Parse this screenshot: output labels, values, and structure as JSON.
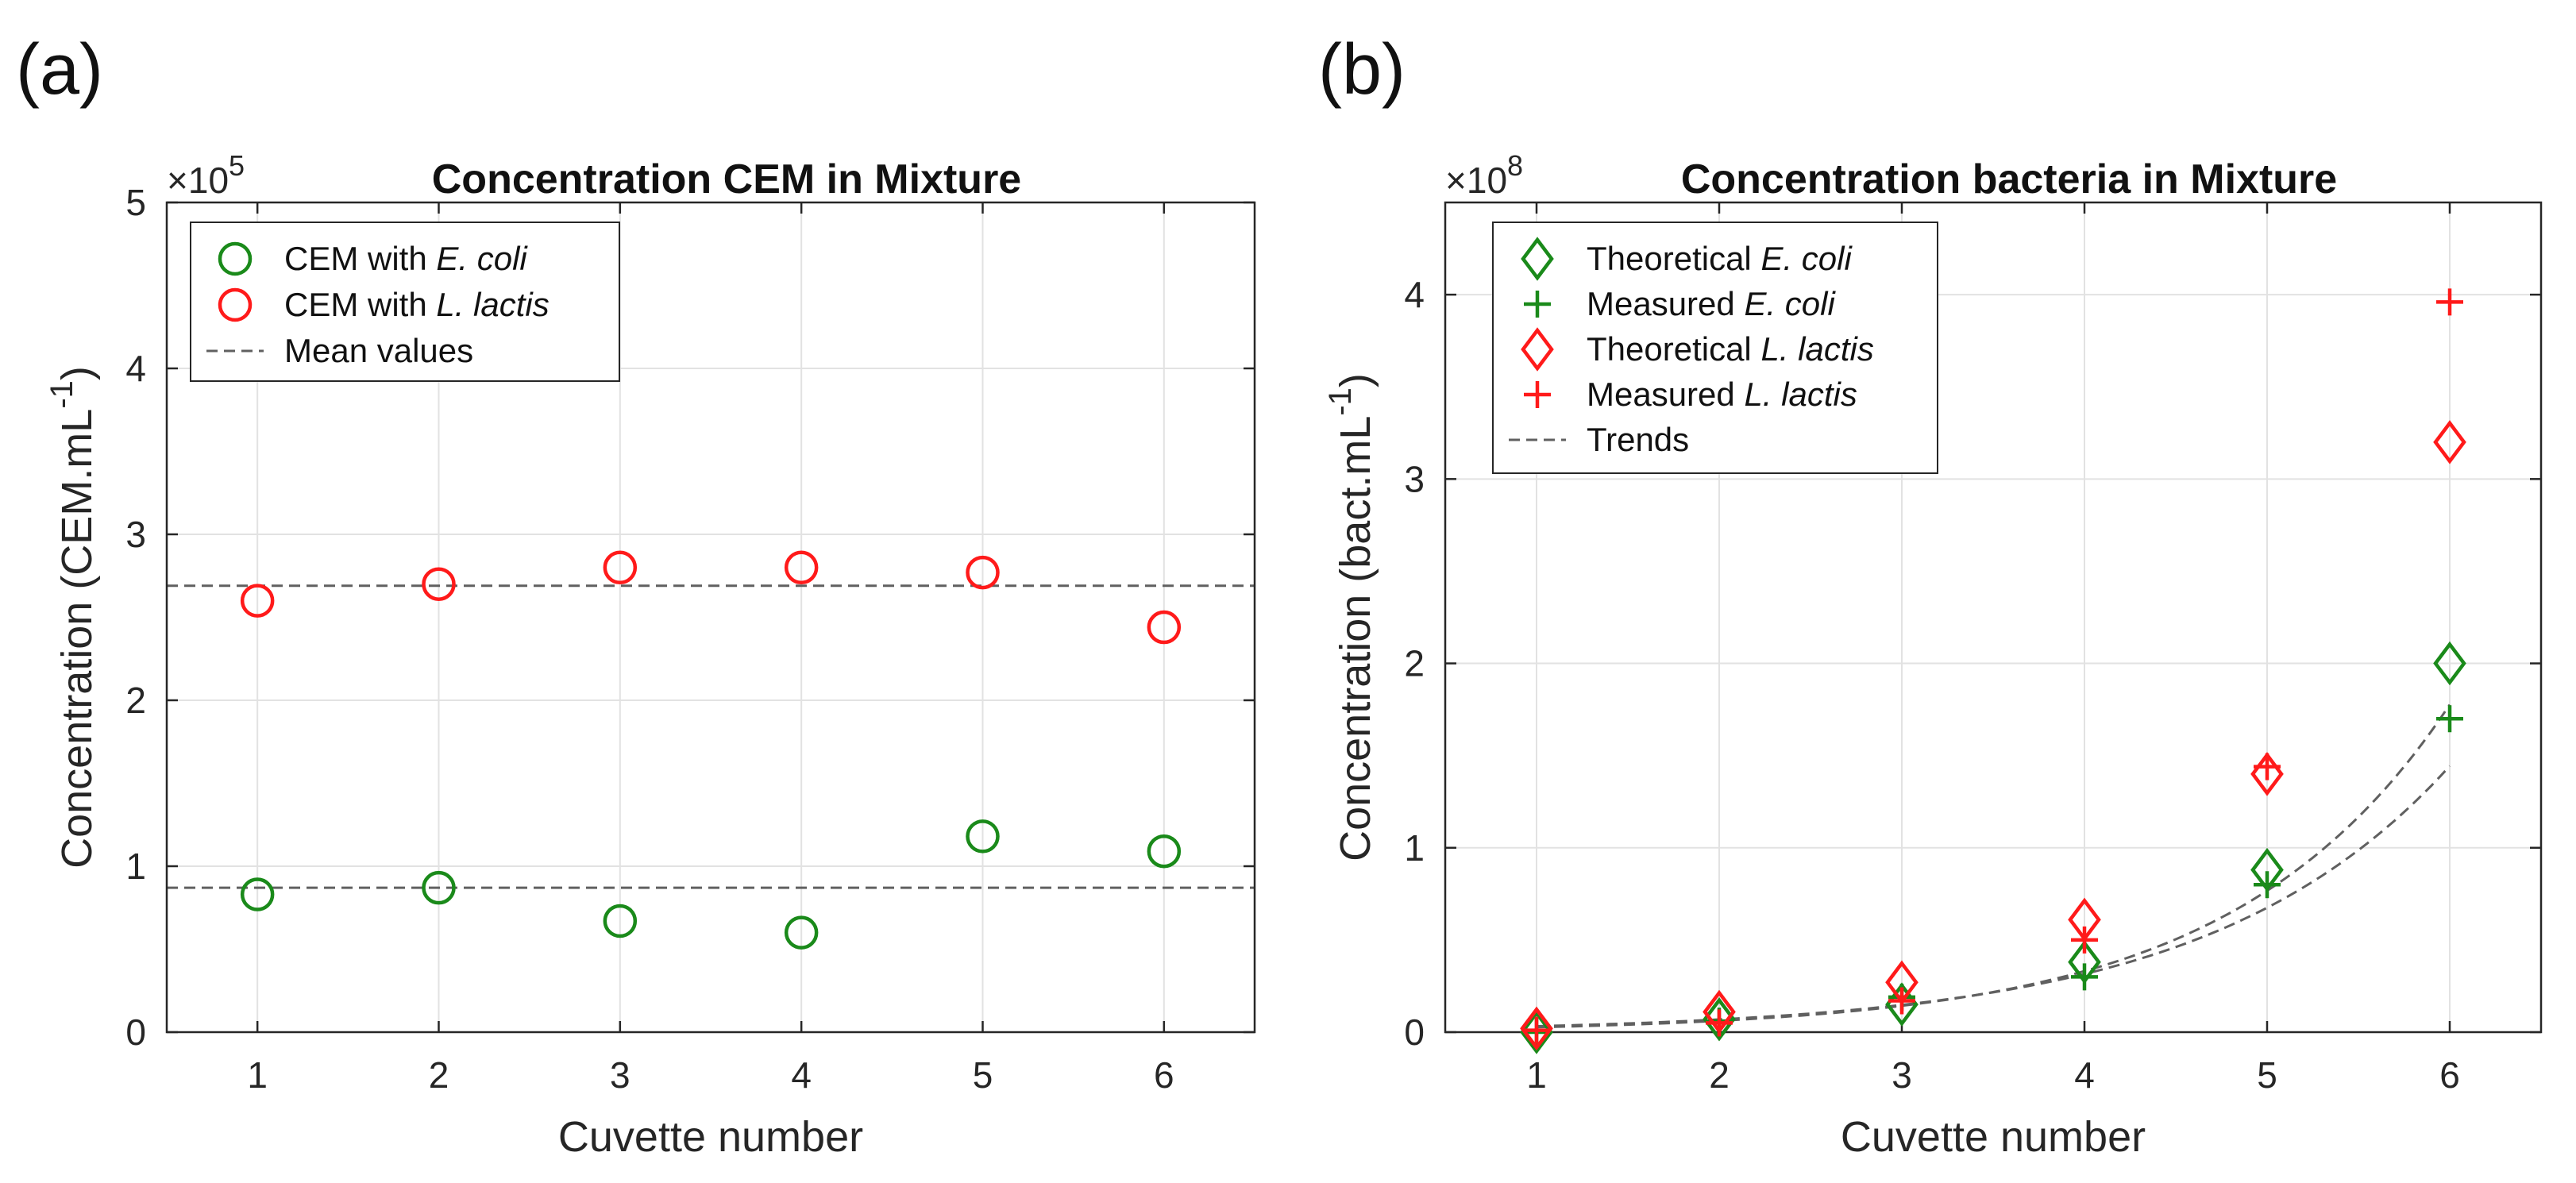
{
  "panel_labels": [
    "(a)",
    "(b)"
  ],
  "chart_data": [
    {
      "type": "scatter",
      "title": "Concentration CEM in Mixture",
      "xlabel": "Cuvette number",
      "ylabel": "Concentration (CEM.mL",
      "ylabel_sup": "-1",
      "ylabel_close": ")",
      "exponent_base": "×10",
      "exponent_power": "5",
      "xlim": [
        0.5,
        6.5
      ],
      "ylim": [
        0,
        5
      ],
      "xticks": [
        1,
        2,
        3,
        4,
        5,
        6
      ],
      "xtick_labels": [
        "1",
        "2",
        "3",
        "4",
        "5",
        "6"
      ],
      "yticks": [
        0,
        1,
        2,
        3,
        4,
        5
      ],
      "ytick_labels": [
        "0",
        "1",
        "2",
        "3",
        "4",
        "5"
      ],
      "grid": true,
      "legend_position": "top-left",
      "legend": [
        {
          "prefix": "CEM with ",
          "italic": "E. coli",
          "marker": "circle",
          "color": "#1a8a1a"
        },
        {
          "prefix": "CEM with ",
          "italic": "L. lactis",
          "marker": "circle",
          "color": "#ff1a1a"
        },
        {
          "prefix": "Mean values",
          "italic": "",
          "marker": "dash",
          "color": "#606060"
        }
      ],
      "series": [
        {
          "name": "CEM with E. coli",
          "marker": "circle",
          "color": "#1a8a1a",
          "x": [
            1,
            2,
            3,
            4,
            5,
            6
          ],
          "values": [
            0.83,
            0.87,
            0.67,
            0.6,
            1.18,
            1.09
          ]
        },
        {
          "name": "CEM with L. lactis",
          "marker": "circle",
          "color": "#ff1a1a",
          "x": [
            1,
            2,
            3,
            4,
            5,
            6
          ],
          "values": [
            2.6,
            2.7,
            2.8,
            2.8,
            2.77,
            2.44
          ]
        }
      ],
      "hlines": [
        {
          "name": "Mean values",
          "value": 2.69,
          "color": "#606060"
        },
        {
          "name": "Mean values",
          "value": 0.87,
          "color": "#606060"
        }
      ]
    },
    {
      "type": "scatter",
      "title": "Concentration bacteria in Mixture",
      "xlabel": "Cuvette number",
      "ylabel": "Concentration (bact.mL",
      "ylabel_sup": "-1",
      "ylabel_close": ")",
      "exponent_base": "×10",
      "exponent_power": "8",
      "xlim": [
        0.5,
        6.5
      ],
      "ylim": [
        0,
        4.5
      ],
      "xticks": [
        1,
        2,
        3,
        4,
        5,
        6
      ],
      "xtick_labels": [
        "1",
        "2",
        "3",
        "4",
        "5",
        "6"
      ],
      "yticks": [
        0,
        1,
        2,
        3,
        4
      ],
      "ytick_labels": [
        "0",
        "1",
        "2",
        "3",
        "4"
      ],
      "grid": true,
      "legend_position": "top-left",
      "legend": [
        {
          "prefix": "Theoretical ",
          "italic": "E. coli",
          "marker": "diamond",
          "color": "#1a8a1a"
        },
        {
          "prefix": "Measured ",
          "italic": "E. coli",
          "marker": "plus",
          "color": "#1a8a1a"
        },
        {
          "prefix": "Theoretical ",
          "italic": "L. lactis",
          "marker": "diamond",
          "color": "#ff1a1a"
        },
        {
          "prefix": "Measured ",
          "italic": "L. lactis",
          "marker": "plus",
          "color": "#ff1a1a"
        },
        {
          "prefix": "Trends",
          "italic": "",
          "marker": "dash",
          "color": "#606060"
        }
      ],
      "series": [
        {
          "name": "Theoretical E. coli",
          "marker": "diamond",
          "color": "#1a8a1a",
          "x": [
            1,
            2,
            3,
            4,
            5,
            6
          ],
          "values": [
            0.0,
            0.07,
            0.15,
            0.38,
            0.88,
            2.0
          ]
        },
        {
          "name": "Measured E. coli",
          "marker": "plus",
          "color": "#1a8a1a",
          "x": [
            1,
            2,
            3,
            4,
            5,
            6
          ],
          "values": [
            0.0,
            0.06,
            0.19,
            0.3,
            0.8,
            1.7
          ]
        },
        {
          "name": "Theoretical L. lactis",
          "marker": "diamond",
          "color": "#ff1a1a",
          "x": [
            1,
            2,
            3,
            4,
            5,
            6
          ],
          "values": [
            0.02,
            0.11,
            0.27,
            0.61,
            1.4,
            3.2
          ]
        },
        {
          "name": "Measured L. lactis",
          "marker": "plus",
          "color": "#ff1a1a",
          "x": [
            1,
            2,
            3,
            4,
            5,
            6
          ],
          "values": [
            0.01,
            0.05,
            0.17,
            0.5,
            1.44,
            3.96
          ]
        }
      ],
      "trends": [
        {
          "name": "Trends",
          "type": "exponential",
          "a": 0.0115,
          "b": 0.84,
          "color": "#606060"
        },
        {
          "name": "Trends",
          "type": "exponential",
          "a": 0.0151,
          "b": 0.76,
          "color": "#606060"
        }
      ]
    }
  ]
}
